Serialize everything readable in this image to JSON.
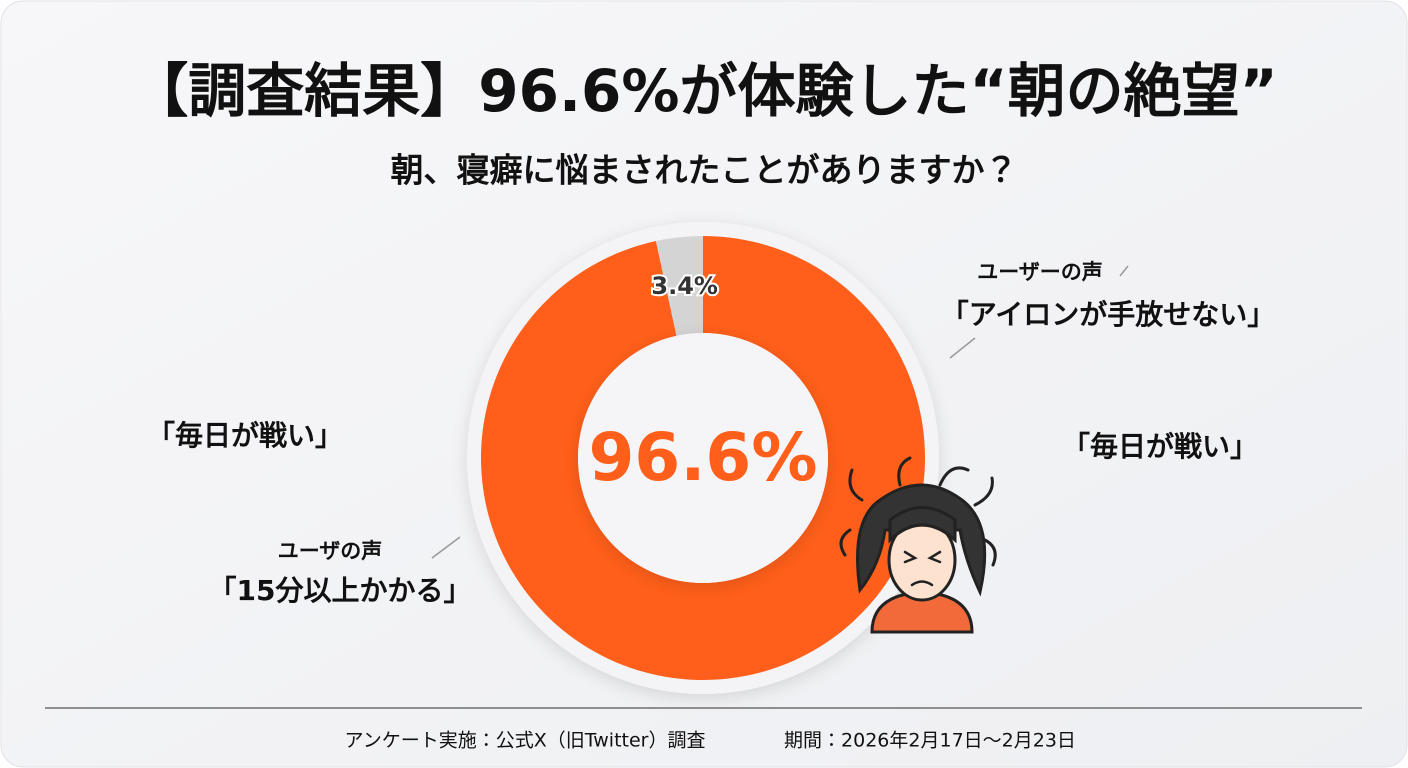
{
  "chart_data": {
    "type": "pie",
    "donut": true,
    "title": "【調査結果】96.6%が体験した“朝の絶望”",
    "subtitle": "朝、寝癖に悩まされたことがありますか？",
    "values": [
      96.6,
      3.4
    ],
    "value_labels": [
      "96.6%",
      "3.4%"
    ],
    "colors": [
      "#ff5f1a",
      "#d4d4d4"
    ],
    "annotations": [
      "ユーザーの声",
      "「アイロンが手放せない」",
      "「毎日が戦い」",
      "「毎日が戦い」",
      "ユーザの声",
      "「15分以上かかる」"
    ],
    "footer": [
      "アンケート実施：公式X（旧Twitter）調査",
      "期間：2026年2月17日〜2月23日"
    ]
  }
}
